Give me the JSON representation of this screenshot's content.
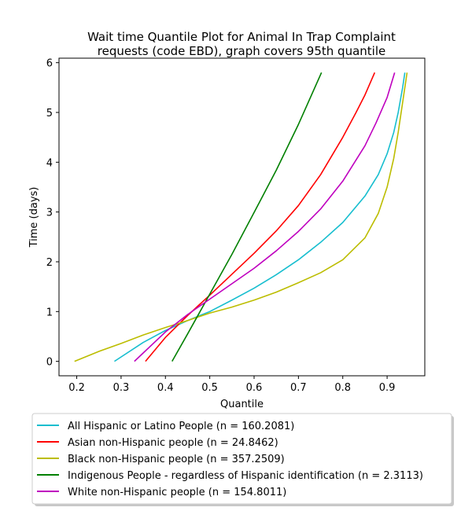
{
  "chart_data": {
    "type": "line",
    "title": [
      "Wait time Quantile Plot for Animal In Trap Complaint",
      "requests (code EBD), graph covers 95th quantile"
    ],
    "xlabel": "Quantile",
    "ylabel": "Time (days)",
    "xlim": [
      0.16,
      0.985
    ],
    "ylim": [
      -0.29,
      6.09
    ],
    "xticks": [
      0.2,
      0.3,
      0.4,
      0.5,
      0.6,
      0.7,
      0.8,
      0.9
    ],
    "xtick_labels": [
      "0.2",
      "0.3",
      "0.4",
      "0.5",
      "0.6",
      "0.7",
      "0.8",
      "0.9"
    ],
    "yticks": [
      0,
      1,
      2,
      3,
      4,
      5,
      6
    ],
    "ytick_labels": [
      "0",
      "1",
      "2",
      "3",
      "4",
      "5",
      "6"
    ],
    "grid": false,
    "legend_placement": "below",
    "series": [
      {
        "name": "All Hispanic or Latino People (n = 160.2081)",
        "color": "#17becf",
        "x": [
          0.285,
          0.35,
          0.4,
          0.45,
          0.5,
          0.55,
          0.6,
          0.65,
          0.7,
          0.75,
          0.8,
          0.85,
          0.88,
          0.9,
          0.915,
          0.925,
          0.935,
          0.94
        ],
        "y": [
          0.0,
          0.38,
          0.62,
          0.82,
          1.0,
          1.23,
          1.47,
          1.74,
          2.04,
          2.39,
          2.79,
          3.32,
          3.75,
          4.17,
          4.6,
          5.0,
          5.5,
          5.8
        ]
      },
      {
        "name": "Asian non-Hispanic people (n = 24.8462)",
        "color": "#ff0000",
        "x": [
          0.355,
          0.4,
          0.45,
          0.5,
          0.55,
          0.6,
          0.65,
          0.7,
          0.75,
          0.8,
          0.83,
          0.85,
          0.872
        ],
        "y": [
          0.0,
          0.48,
          0.92,
          1.33,
          1.75,
          2.17,
          2.62,
          3.13,
          3.75,
          4.5,
          5.0,
          5.35,
          5.8
        ]
      },
      {
        "name": "Black non-Hispanic people (n = 357.2509)",
        "color": "#bcbd00",
        "x": [
          0.195,
          0.25,
          0.3,
          0.35,
          0.4,
          0.45,
          0.5,
          0.55,
          0.6,
          0.65,
          0.7,
          0.75,
          0.8,
          0.85,
          0.88,
          0.9,
          0.915,
          0.925,
          0.935,
          0.945
        ],
        "y": [
          0.0,
          0.2,
          0.36,
          0.53,
          0.68,
          0.82,
          0.97,
          1.09,
          1.23,
          1.39,
          1.58,
          1.78,
          2.04,
          2.48,
          2.97,
          3.5,
          4.08,
          4.6,
          5.2,
          5.8
        ]
      },
      {
        "name": "Indigenous People - regardless of Hispanic identification (n = 2.3113)",
        "color": "#008000",
        "x": [
          0.415,
          0.45,
          0.5,
          0.55,
          0.6,
          0.65,
          0.7,
          0.752
        ],
        "y": [
          0.0,
          0.55,
          1.35,
          2.15,
          2.99,
          3.84,
          4.76,
          5.8
        ]
      },
      {
        "name": "White non-Hispanic people (n = 154.8011)",
        "color": "#bf00bf",
        "x": [
          0.33,
          0.4,
          0.45,
          0.5,
          0.55,
          0.6,
          0.65,
          0.7,
          0.75,
          0.8,
          0.85,
          0.875,
          0.9,
          0.917
        ],
        "y": [
          0.0,
          0.59,
          0.94,
          1.25,
          1.56,
          1.87,
          2.22,
          2.61,
          3.06,
          3.62,
          4.33,
          4.79,
          5.3,
          5.8
        ]
      }
    ]
  }
}
